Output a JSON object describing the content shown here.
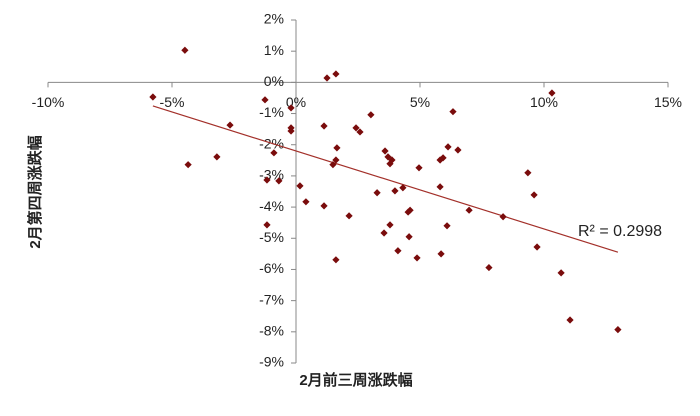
{
  "chart_data": {
    "type": "scatter",
    "x_label": "2月前三周涨跌幅",
    "y_label": "2月第四周涨跌幅",
    "annotation": "R² = 0.2998",
    "color": "#7a0c0c",
    "x": [
      -4.48,
      -5.77,
      -4.35,
      -3.19,
      -2.66,
      -1.25,
      -0.2,
      -0.2,
      -0.2,
      -0.89,
      -1.17,
      -0.69,
      -1.17,
      0.16,
      0.4,
      1.25,
      1.61,
      1.13,
      1.65,
      1.49,
      1.61,
      1.13,
      2.14,
      1.61,
      2.42,
      2.58,
      3.02,
      3.59,
      3.79,
      3.71,
      3.87,
      3.27,
      3.99,
      4.31,
      3.55,
      3.79,
      4.11,
      4.52,
      4.6,
      4.56,
      4.88,
      4.96,
      5.81,
      5.93,
      5.81,
      6.13,
      6.33,
      6.53,
      6.09,
      5.85,
      6.98,
      8.35,
      7.78,
      9.35,
      9.6,
      9.72,
      10.32,
      10.69,
      11.05,
      12.98
    ],
    "values": [
      1.03,
      -0.47,
      -2.64,
      -2.39,
      -1.37,
      -0.56,
      -0.82,
      -1.46,
      -1.56,
      -2.26,
      -3.13,
      -3.16,
      -4.57,
      -3.32,
      -3.83,
      0.14,
      0.27,
      -1.4,
      -2.1,
      -2.64,
      -2.49,
      -3.96,
      -4.28,
      -5.69,
      -1.46,
      -1.59,
      -1.04,
      -2.2,
      -2.61,
      -2.39,
      -2.49,
      -3.54,
      -3.48,
      -3.38,
      -4.83,
      -4.57,
      -5.4,
      -4.16,
      -4.1,
      -4.95,
      -5.63,
      -2.74,
      -2.49,
      -2.42,
      -3.35,
      -2.07,
      -0.94,
      -2.17,
      -4.6,
      -5.5,
      -4.1,
      -4.31,
      -5.94,
      -2.9,
      -3.61,
      -5.28,
      -0.34,
      -6.11,
      -7.62,
      -7.93
    ],
    "trendline": {
      "slope": -0.25,
      "intercept": -2.2,
      "color": "#a3302a"
    },
    "xlim": [
      -10,
      15
    ],
    "ylim": [
      -9,
      2
    ],
    "xticks": [
      {
        "value": -10,
        "label": "-10%"
      },
      {
        "value": -5,
        "label": "-5%"
      },
      {
        "value": 0,
        "label": "0%"
      },
      {
        "value": 5,
        "label": "5%"
      },
      {
        "value": 10,
        "label": "10%"
      },
      {
        "value": 15,
        "label": "15%"
      }
    ],
    "yticks": [
      {
        "value": 2,
        "label": "2%"
      },
      {
        "value": 1,
        "label": "1%"
      },
      {
        "value": 0,
        "label": "0%"
      },
      {
        "value": -1,
        "label": "-1%"
      },
      {
        "value": -2,
        "label": "-2%"
      },
      {
        "value": -3,
        "label": "-3%"
      },
      {
        "value": -4,
        "label": "-4%"
      },
      {
        "value": -5,
        "label": "-5%"
      },
      {
        "value": -6,
        "label": "-6%"
      },
      {
        "value": -7,
        "label": "-7%"
      },
      {
        "value": -8,
        "label": "-8%"
      },
      {
        "value": -9,
        "label": "-9%"
      }
    ],
    "grid": false
  }
}
